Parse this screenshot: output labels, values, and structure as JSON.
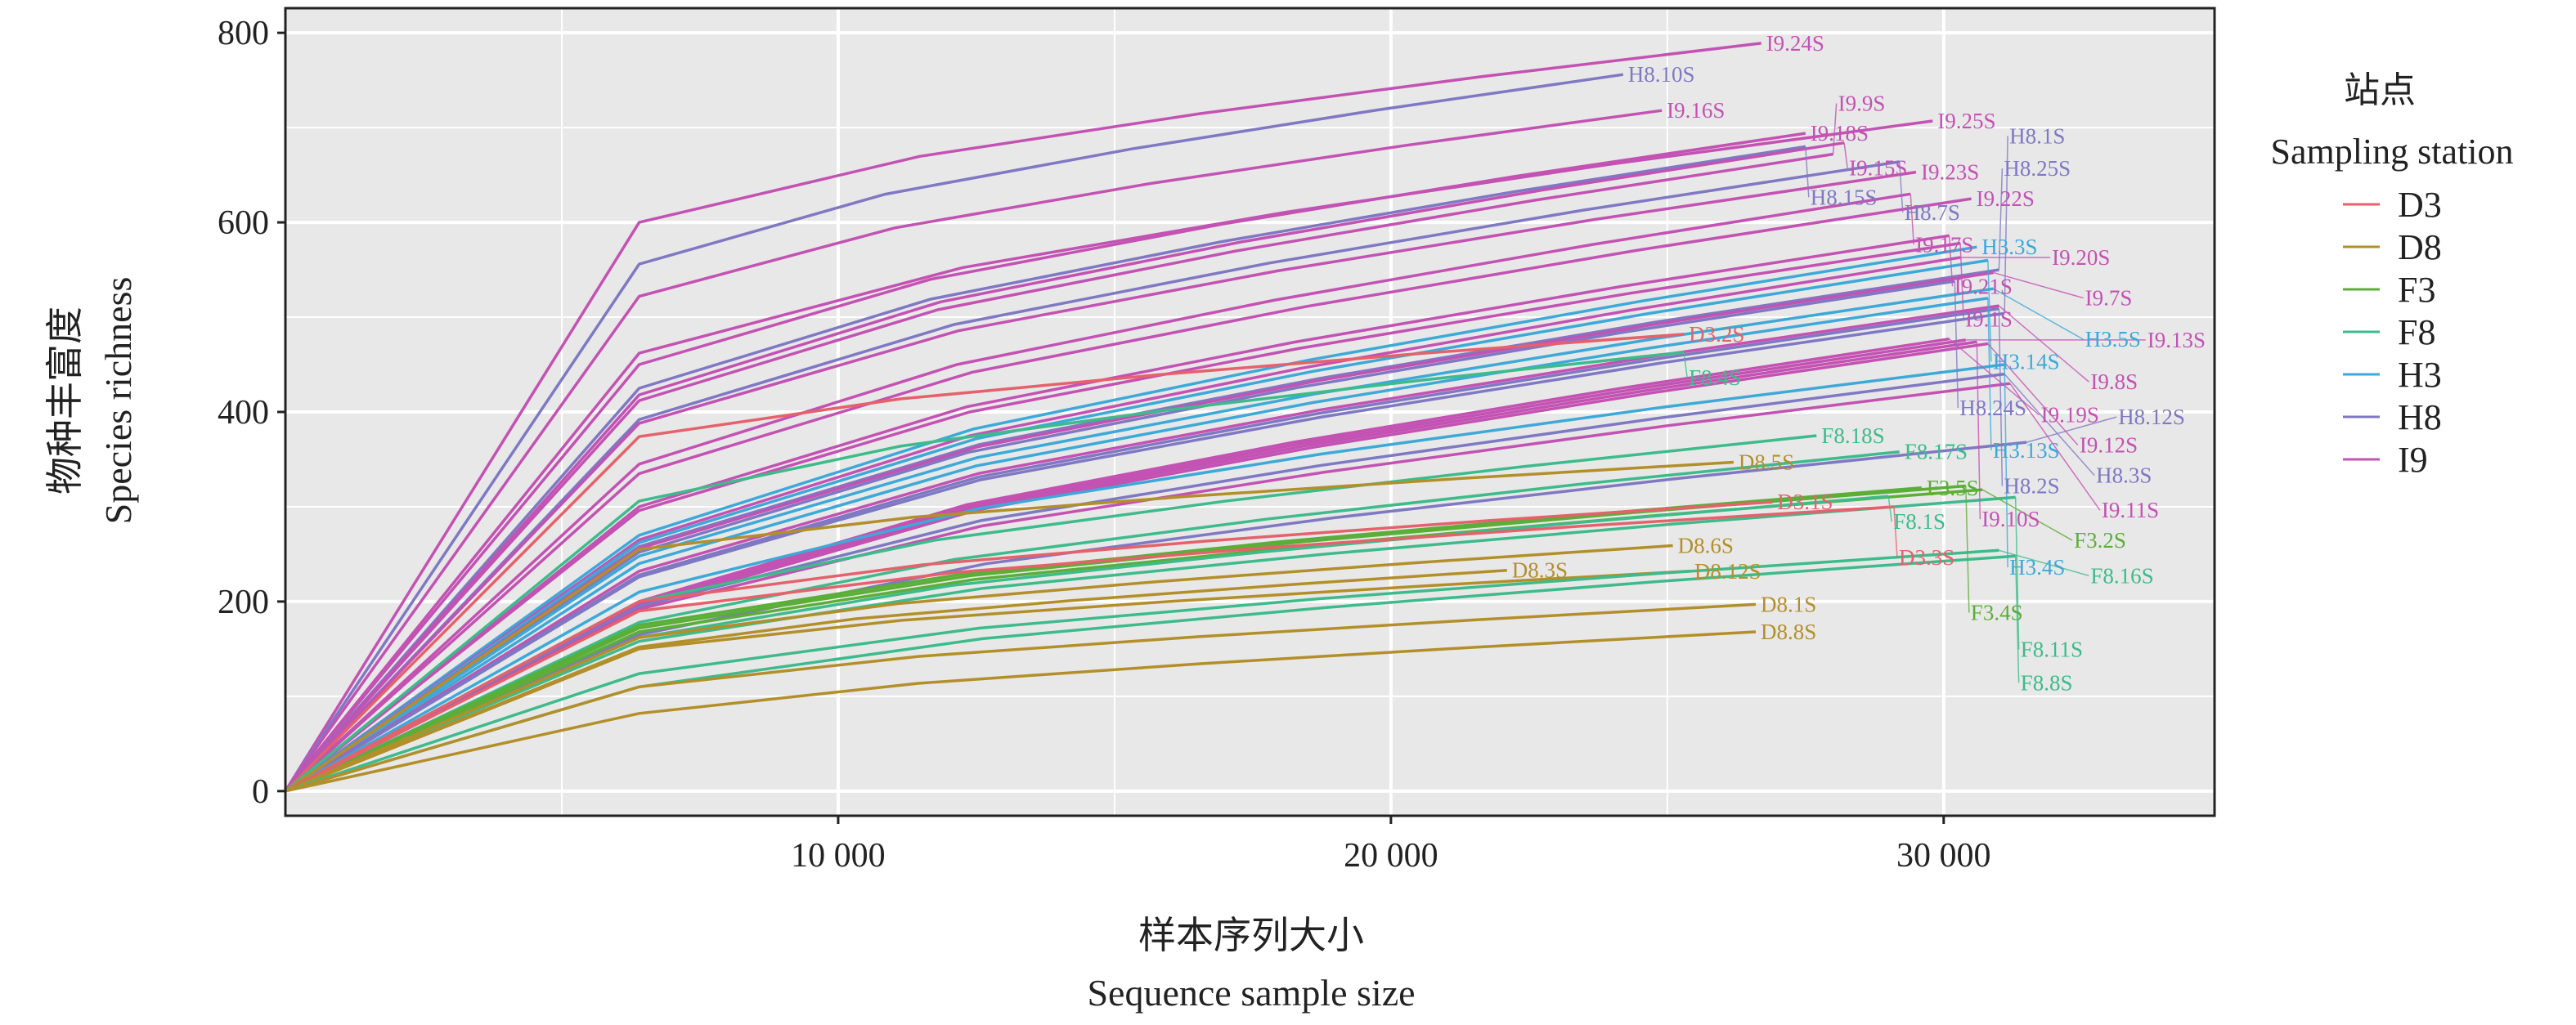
{
  "chart_data": {
    "type": "line",
    "title": "",
    "xlabel_cn": "样本序列大小",
    "xlabel": "Sequence sample size",
    "ylabel_cn": "物种丰富度",
    "ylabel": "Species richness",
    "xlim": [
      0,
      34900
    ],
    "ylim": [
      -26,
      826
    ],
    "xticks": [
      10000,
      20000,
      30000
    ],
    "xtick_labels": [
      "10 000",
      "20 000",
      "30 000"
    ],
    "yticks": [
      0,
      200,
      400,
      600,
      800
    ],
    "ytick_labels": [
      "0",
      "200",
      "400",
      "600",
      "800"
    ],
    "grid": true,
    "legend": {
      "title_cn": "站点",
      "title": "Sampling station",
      "placement": "right",
      "entries": [
        {
          "name": "D3",
          "color": "#E5616B"
        },
        {
          "name": "D8",
          "color": "#B38F2A"
        },
        {
          "name": "F3",
          "color": "#5BAE37"
        },
        {
          "name": "F8",
          "color": "#3DBB8B"
        },
        {
          "name": "H3",
          "color": "#3DA9D8"
        },
        {
          "name": "H8",
          "color": "#7F78C3"
        },
        {
          "name": "I9",
          "color": "#C352B3"
        }
      ]
    },
    "series": [
      {
        "name": "I9.24S",
        "group": "I9",
        "x_end": 26700,
        "y_end": 789,
        "y_6400": 600
      },
      {
        "name": "H8.10S",
        "group": "H8",
        "x_end": 24200,
        "y_end": 756,
        "y_6400": 556
      },
      {
        "name": "I9.16S",
        "group": "I9",
        "x_end": 24900,
        "y_end": 718,
        "y_6400": 522
      },
      {
        "name": "I9.25S",
        "group": "I9",
        "x_end": 29800,
        "y_end": 707,
        "y_6400": 462
      },
      {
        "name": "I9.18S",
        "group": "I9",
        "x_end": 27500,
        "y_end": 694,
        "y_6400": 450
      },
      {
        "name": "H8.15S",
        "group": "H8",
        "x_end": 27500,
        "y_end": 680,
        "y_6400": 425
      },
      {
        "name": "I9.15S",
        "group": "I9",
        "x_end": 28200,
        "y_end": 684,
        "y_6400": 418
      },
      {
        "name": "I9.9S",
        "group": "I9",
        "x_end": 28000,
        "y_end": 672,
        "y_6400": 412
      },
      {
        "name": "H8.7S",
        "group": "H8",
        "x_end": 29200,
        "y_end": 664,
        "y_6400": 392
      },
      {
        "name": "I9.23S",
        "group": "I9",
        "x_end": 29500,
        "y_end": 653,
        "y_6400": 388
      },
      {
        "name": "I9.17S",
        "group": "I9",
        "x_end": 29400,
        "y_end": 630,
        "y_6400": 345
      },
      {
        "name": "I9.22S",
        "group": "I9",
        "x_end": 30500,
        "y_end": 625,
        "y_6400": 335
      },
      {
        "name": "I9.21S",
        "group": "I9",
        "x_end": 30100,
        "y_end": 586,
        "y_6400": 300
      },
      {
        "name": "I9.1S",
        "group": "I9",
        "x_end": 30300,
        "y_end": 578,
        "y_6400": 296
      },
      {
        "name": "H3.3S",
        "group": "H3",
        "x_end": 30600,
        "y_end": 574,
        "y_6400": 270
      },
      {
        "name": "I9.20S",
        "group": "I9",
        "x_end": 30300,
        "y_end": 563,
        "y_6400": 265
      },
      {
        "name": "H3.14S",
        "group": "H3",
        "x_end": 30800,
        "y_end": 560,
        "y_6400": 262
      },
      {
        "name": "H8.25S",
        "group": "H8",
        "x_end": 31000,
        "y_end": 550,
        "y_6400": 258
      },
      {
        "name": "I9.7S",
        "group": "I9",
        "x_end": 30900,
        "y_end": 547,
        "y_6400": 256
      },
      {
        "name": "H8.24S",
        "group": "H8",
        "x_end": 30200,
        "y_end": 538,
        "y_6400": 252
      },
      {
        "name": "H3.5S",
        "group": "H3",
        "x_end": 30900,
        "y_end": 530,
        "y_6400": 248
      },
      {
        "name": "H3.13S",
        "group": "H3",
        "x_end": 30800,
        "y_end": 520,
        "y_6400": 240
      },
      {
        "name": "I9.8S",
        "group": "I9",
        "x_end": 31000,
        "y_end": 512,
        "y_6400": 232
      },
      {
        "name": "H8.2S",
        "group": "H8",
        "x_end": 31000,
        "y_end": 509,
        "y_6400": 228
      },
      {
        "name": "H8.1S",
        "group": "H8",
        "x_end": 31100,
        "y_end": 504,
        "y_6400": 226
      },
      {
        "name": "I9.19S",
        "group": "I9",
        "x_end": 30100,
        "y_end": 477,
        "y_6400": 200
      },
      {
        "name": "I9.13S",
        "group": "I9",
        "x_end": 30400,
        "y_end": 476,
        "y_6400": 198
      },
      {
        "name": "I9.10S",
        "group": "I9",
        "x_end": 30600,
        "y_end": 474,
        "y_6400": 196
      },
      {
        "name": "I9.12S",
        "group": "I9",
        "x_end": 30800,
        "y_end": 472,
        "y_6400": 194
      },
      {
        "name": "H3.4S",
        "group": "H3",
        "x_end": 31100,
        "y_end": 450,
        "y_6400": 210
      },
      {
        "name": "H8.3S",
        "group": "H8",
        "x_end": 31100,
        "y_end": 440,
        "y_6400": 195
      },
      {
        "name": "I9.11S",
        "group": "I9",
        "x_end": 31200,
        "y_end": 430,
        "y_6400": 192
      },
      {
        "name": "D3.2S",
        "group": "D3",
        "x_end": 25300,
        "y_end": 482,
        "y_6400": 374
      },
      {
        "name": "F8.4S",
        "group": "F8",
        "x_end": 25300,
        "y_end": 463,
        "y_6400": 306
      },
      {
        "name": "F8.18S",
        "group": "F8",
        "x_end": 27700,
        "y_end": 375,
        "y_6400": 200
      },
      {
        "name": "F8.17S",
        "group": "F8",
        "x_end": 29200,
        "y_end": 358,
        "y_6400": 178
      },
      {
        "name": "H8.12S",
        "group": "H8",
        "x_end": 31500,
        "y_end": 368,
        "y_6400": 165
      },
      {
        "name": "D8.5S",
        "group": "D8",
        "x_end": 26200,
        "y_end": 347,
        "y_6400": 255
      },
      {
        "name": "F3.5S",
        "group": "F3",
        "x_end": 29600,
        "y_end": 320,
        "y_6400": 175
      },
      {
        "name": "F3.4S",
        "group": "F3",
        "x_end": 30400,
        "y_end": 322,
        "y_6400": 172
      },
      {
        "name": "F3.2S",
        "group": "F3",
        "x_end": 30700,
        "y_end": 318,
        "y_6400": 168
      },
      {
        "name": "F8.1S",
        "group": "F8",
        "x_end": 29000,
        "y_end": 311,
        "y_6400": 162
      },
      {
        "name": "F8.11S",
        "group": "F8",
        "x_end": 31300,
        "y_end": 310,
        "y_6400": 158
      },
      {
        "name": "D3.1S",
        "group": "D3",
        "x_end": 26900,
        "y_end": 305,
        "y_6400": 200
      },
      {
        "name": "D3.3S",
        "group": "D3",
        "x_end": 29100,
        "y_end": 300,
        "y_6400": 190
      },
      {
        "name": "D8.6S",
        "group": "D8",
        "x_end": 25100,
        "y_end": 259,
        "y_6400": 162
      },
      {
        "name": "D8.3S",
        "group": "D8",
        "x_end": 22100,
        "y_end": 233,
        "y_6400": 152
      },
      {
        "name": "D8.12S",
        "group": "D8",
        "x_end": 25400,
        "y_end": 232,
        "y_6400": 150
      },
      {
        "name": "F8.16S",
        "group": "F8",
        "x_end": 31000,
        "y_end": 254,
        "y_6400": 124
      },
      {
        "name": "F8.8S",
        "group": "F8",
        "x_end": 31300,
        "y_end": 248,
        "y_6400": 110
      },
      {
        "name": "D8.1S",
        "group": "D8",
        "x_end": 26600,
        "y_end": 197,
        "y_6400": 110
      },
      {
        "name": "D8.8S",
        "group": "D8",
        "x_end": 26600,
        "y_end": 168,
        "y_6400": 82
      }
    ]
  }
}
